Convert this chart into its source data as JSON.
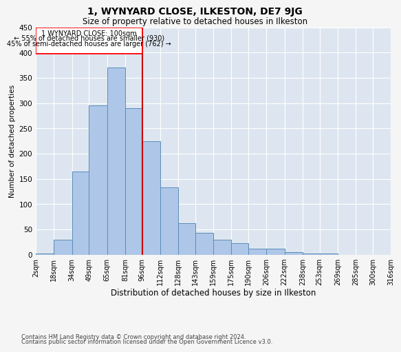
{
  "title": "1, WYNYARD CLOSE, ILKESTON, DE7 9JG",
  "subtitle": "Size of property relative to detached houses in Ilkeston",
  "xlabel": "Distribution of detached houses by size in Ilkeston",
  "ylabel": "Number of detached properties",
  "footnote1": "Contains HM Land Registry data © Crown copyright and database right 2024.",
  "footnote2": "Contains public sector information licensed under the Open Government Licence v3.0.",
  "annotation_line1": "1 WYNYARD CLOSE: 100sqm",
  "annotation_line2": "← 55% of detached houses are smaller (930)",
  "annotation_line3": "45% of semi-detached houses are larger (762) →",
  "bar_color": "#aec6e8",
  "bar_edge_color": "#5b8db8",
  "background_color": "#dde6f0",
  "vline_color": "#cc0000",
  "vline_x": 96,
  "bin_labels": [
    "2sqm",
    "18sqm",
    "34sqm",
    "49sqm",
    "65sqm",
    "81sqm",
    "96sqm",
    "112sqm",
    "128sqm",
    "143sqm",
    "159sqm",
    "175sqm",
    "190sqm",
    "206sqm",
    "222sqm",
    "238sqm",
    "253sqm",
    "269sqm",
    "285sqm",
    "300sqm",
    "316sqm"
  ],
  "bar_heights": [
    2,
    30,
    165,
    295,
    370,
    290,
    225,
    133,
    62,
    43,
    30,
    22,
    11,
    11,
    5,
    2,
    2,
    0,
    0,
    0
  ],
  "bin_edges": [
    2,
    18,
    34,
    49,
    65,
    81,
    96,
    112,
    128,
    143,
    159,
    175,
    190,
    206,
    222,
    238,
    253,
    269,
    285,
    300,
    316
  ],
  "ylim": [
    0,
    450
  ],
  "yticks": [
    0,
    50,
    100,
    150,
    200,
    250,
    300,
    350,
    400,
    450
  ],
  "grid_color": "#ffffff",
  "title_fontsize": 10,
  "subtitle_fontsize": 8.5,
  "xlabel_fontsize": 8.5,
  "ylabel_fontsize": 7.5,
  "annotation_fontsize": 7,
  "tick_fontsize": 7,
  "ytick_fontsize": 7.5,
  "footnote_fontsize": 6
}
